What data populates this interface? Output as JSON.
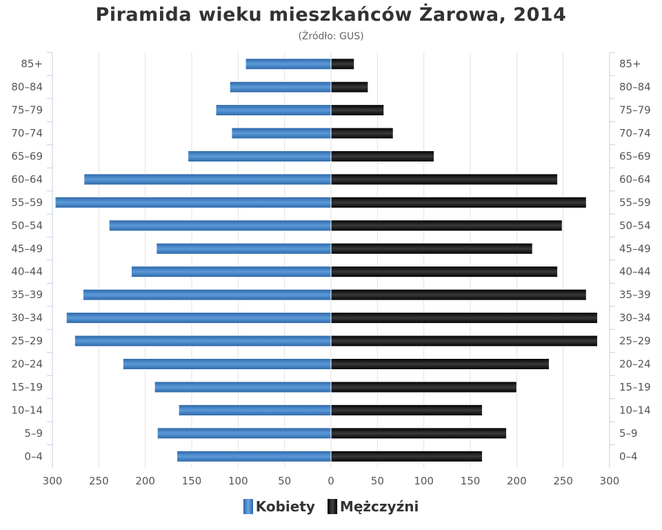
{
  "chart_data": {
    "type": "bar",
    "orientation": "horizontal-population-pyramid",
    "title": "Piramida wieku mieszkańców Żarowa, 2014",
    "subtitle": "(Źródło: GUS)",
    "categories": [
      "85+",
      "80–84",
      "75–79",
      "70–74",
      "65–69",
      "60–64",
      "55–59",
      "50–54",
      "45–49",
      "40–44",
      "35–39",
      "30–34",
      "25–29",
      "20–24",
      "15–19",
      "10–14",
      "5–9",
      "0–4"
    ],
    "series": [
      {
        "name": "Kobiety",
        "side": "left",
        "color": "#3d7cc0",
        "values": [
          92,
          109,
          124,
          107,
          154,
          266,
          297,
          239,
          188,
          215,
          267,
          285,
          276,
          224,
          190,
          164,
          187,
          166
        ]
      },
      {
        "name": "Mężczyźni",
        "side": "right",
        "color": "#111111",
        "values": [
          25,
          40,
          57,
          67,
          111,
          244,
          275,
          249,
          217,
          244,
          275,
          287,
          287,
          235,
          200,
          163,
          189,
          163
        ]
      }
    ],
    "x_ticks": [
      "300",
      "250",
      "200",
      "150",
      "100",
      "50",
      "0",
      "50",
      "100",
      "150",
      "200",
      "250",
      "300"
    ],
    "xlim": [
      -300,
      300
    ],
    "grid": true,
    "legend": "bottom-center"
  }
}
